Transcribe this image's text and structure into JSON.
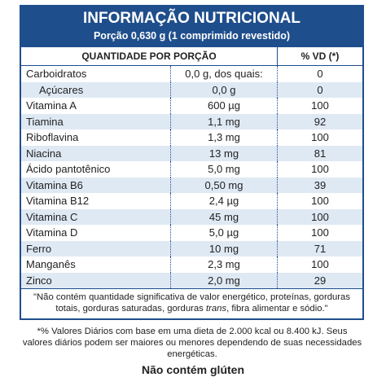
{
  "header": {
    "title": "INFORMAÇÃO NUTRICIONAL",
    "subtitle": "Porção 0,630 g (1 comprimido revestido)"
  },
  "table": {
    "columns": [
      "QUANTIDADE POR PORÇÃO",
      "% VD (*)"
    ],
    "rows": [
      [
        "Carboidratos",
        "0,0 g, dos quais:",
        "0"
      ],
      [
        "Açúcares",
        "0,0 g",
        "0"
      ],
      [
        "Vitamina A",
        "600 µg",
        "100"
      ],
      [
        "Tiamina",
        "1,1 mg",
        "92"
      ],
      [
        "Riboflavina",
        "1,3 mg",
        "100"
      ],
      [
        "Niacina",
        "13 mg",
        "81"
      ],
      [
        "Ácido pantotênico",
        "5,0 mg",
        "100"
      ],
      [
        "Vitamina B6",
        "0,50 mg",
        "39"
      ],
      [
        "Vitamina B12",
        "2,4 µg",
        "100"
      ],
      [
        "Vitamina C",
        "45 mg",
        "100"
      ],
      [
        "Vitamina D",
        "5,0 µg",
        "100"
      ],
      [
        "Ferro",
        "10 mg",
        "71"
      ],
      [
        "Manganês",
        "2,3 mg",
        "100"
      ],
      [
        "Zinco",
        "2,0 mg",
        "29"
      ]
    ]
  },
  "note": {
    "parts": [
      "\"Não contém quantidade significativa de valor energético, proteínas, gorduras totais, gorduras saturadas, gorduras ",
      "trans",
      ", fibra alimentar e sódio.\""
    ]
  },
  "footnote": "*% Valores Diários com base em uma dieta de 2.000 kcal ou 8.400 kJ. Seus valores diários podem ser maiores ou menores dependendo de suas necessidades energéticas.",
  "gluten": "Não contém glúten"
}
